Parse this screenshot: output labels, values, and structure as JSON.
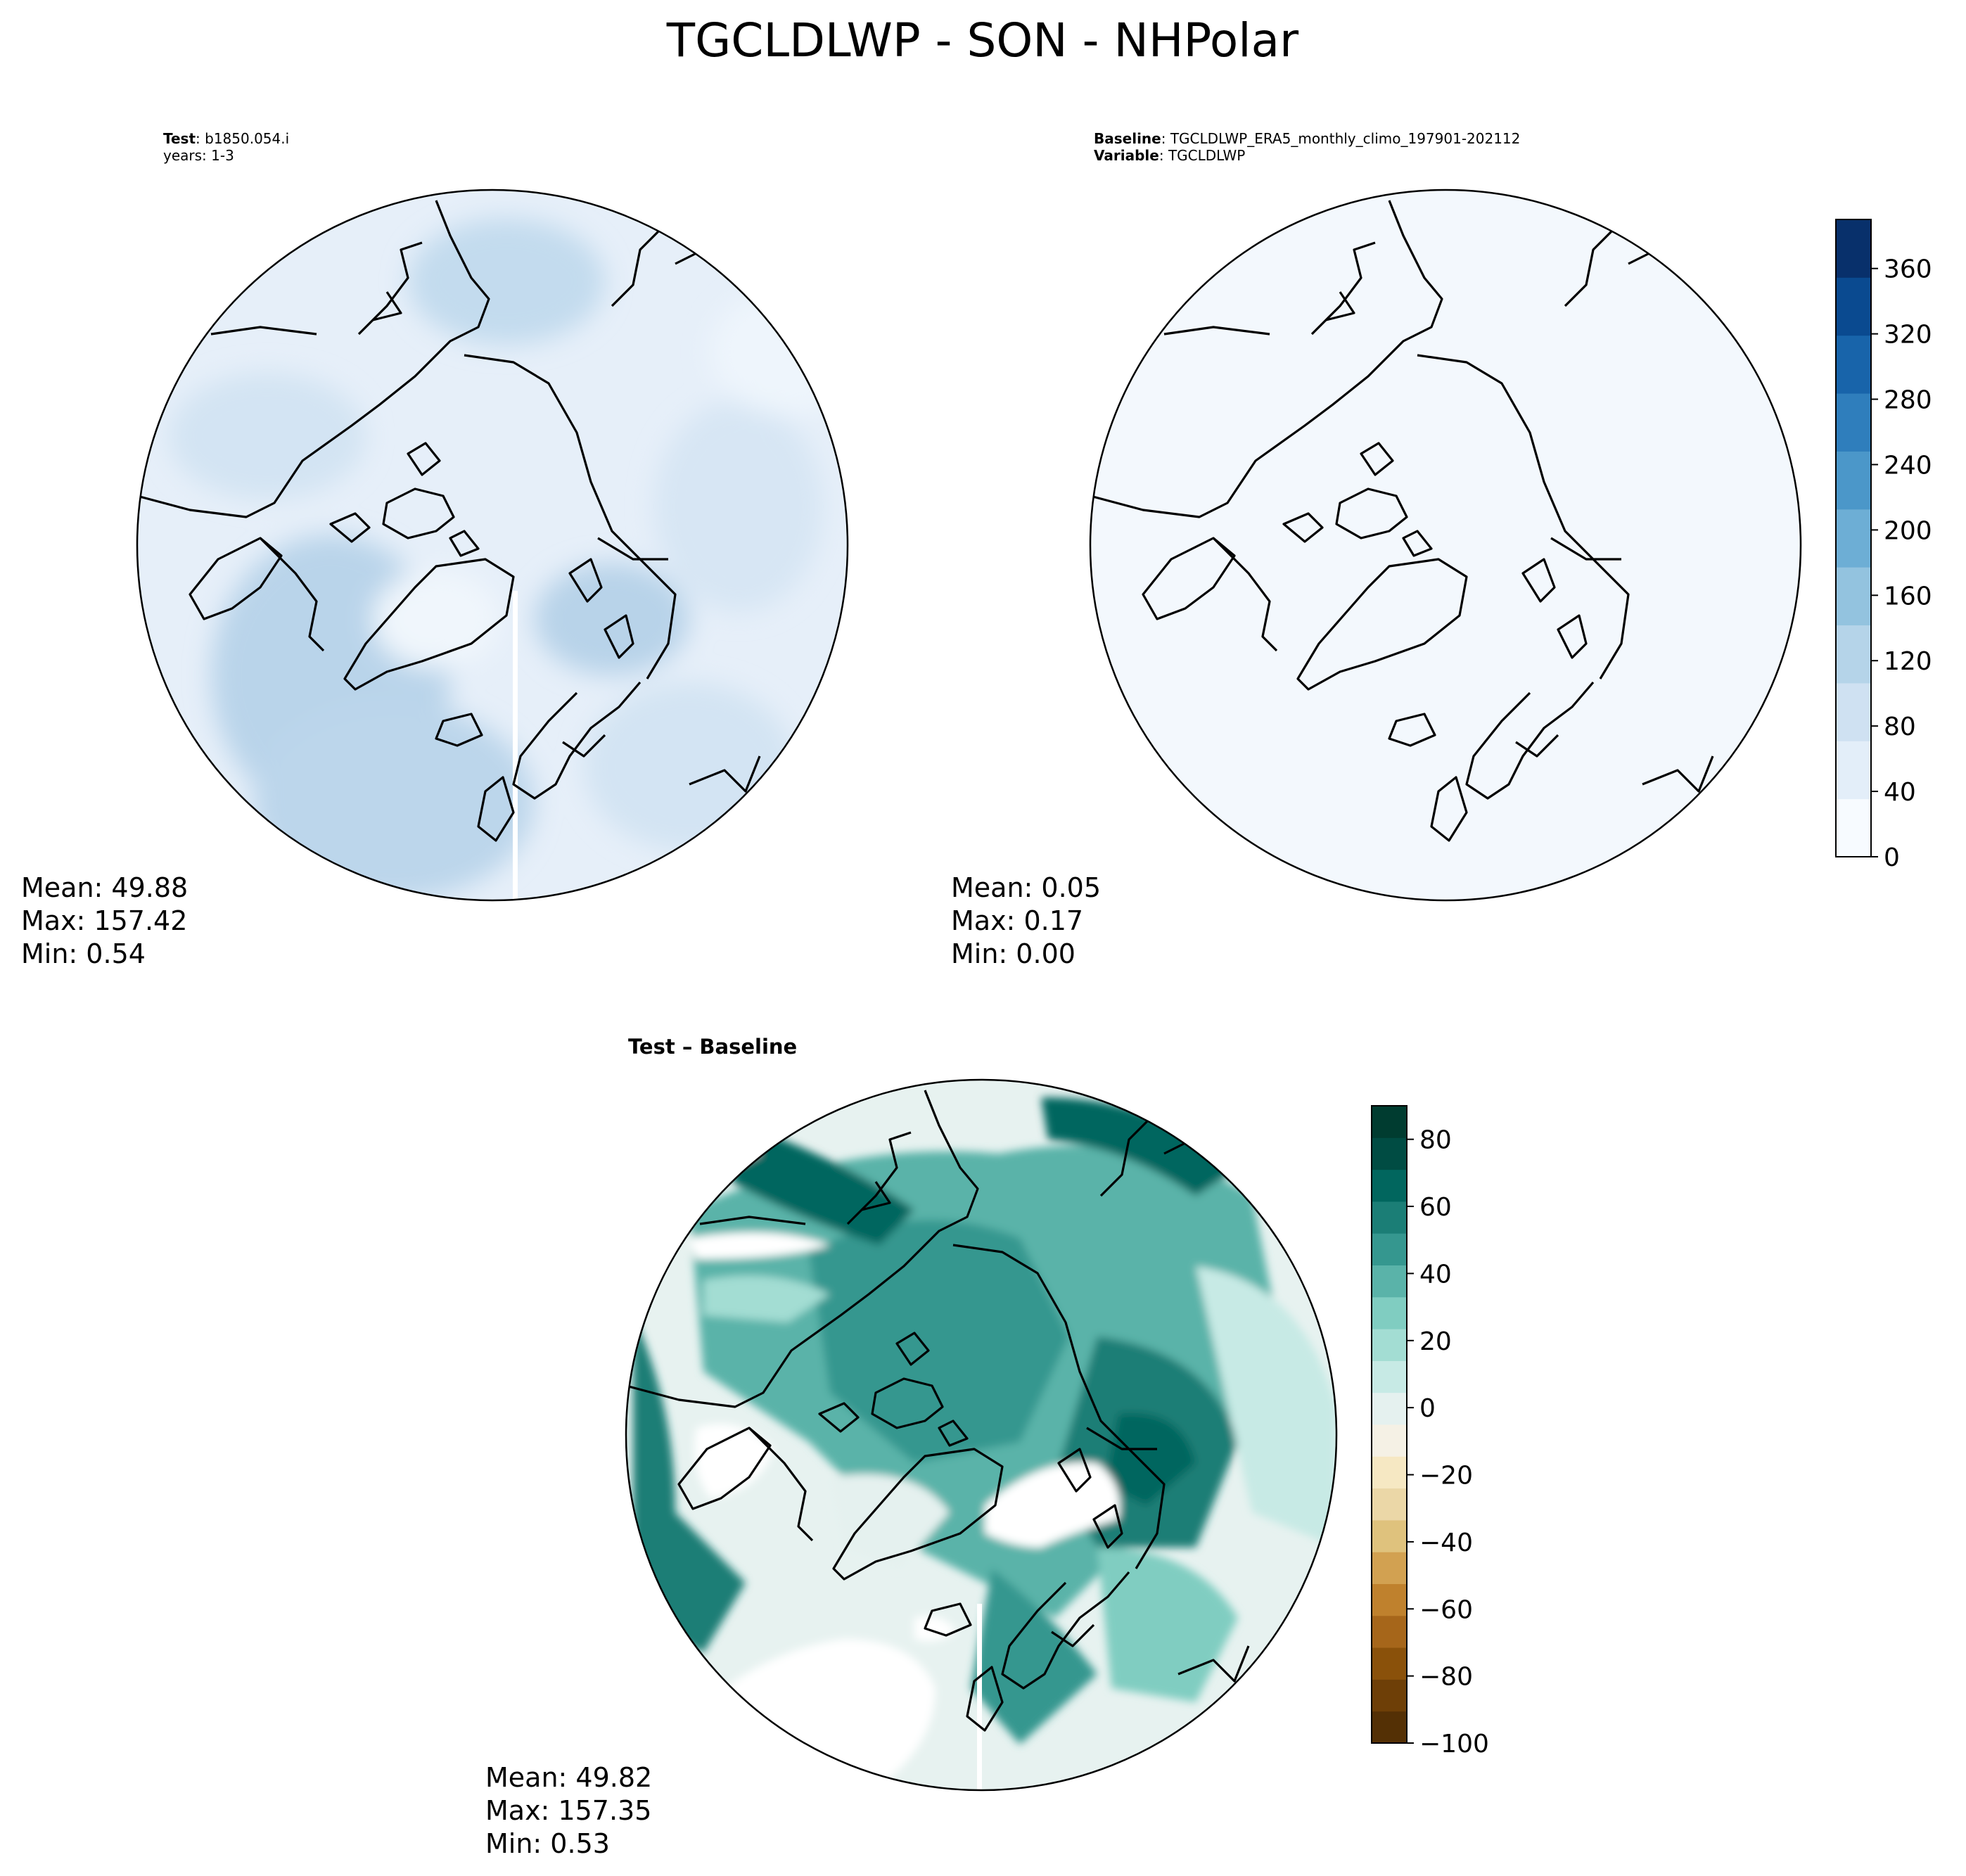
{
  "figure": {
    "title": "TGCLDLWP - SON - NHPolar"
  },
  "panels": {
    "test": {
      "header_label": "Test",
      "header_value": "b1850.054.i",
      "years": "years: 1-3",
      "stats": {
        "mean": "Mean: 49.88",
        "max": "Max: 157.42",
        "min": "Min:  0.54"
      }
    },
    "baseline": {
      "header_label": "Baseline",
      "header_value": "TGCLDLWP_ERA5_monthly_climo_197901-202112",
      "variable_label": "Variable",
      "variable_value": "TGCLDLWP",
      "stats": {
        "mean": "Mean:  0.05",
        "max": "Max:  0.17",
        "min": "Min:  0.00"
      }
    },
    "diff": {
      "title": "Test – Baseline",
      "stats": {
        "mean": "Mean: 49.82",
        "max": "Max: 157.35",
        "min": "Min:  0.53"
      }
    }
  },
  "colorbars": {
    "blues": {
      "colors": [
        "#f7fbff",
        "#e3eef9",
        "#cfe1f2",
        "#b5d4e9",
        "#93c3df",
        "#6daed5",
        "#4b97c9",
        "#2f7ebc",
        "#1864aa",
        "#0a4a90",
        "#08306b"
      ],
      "ticks": [
        "0",
        "40",
        "80",
        "120",
        "160",
        "200",
        "240",
        "280",
        "320",
        "360"
      ]
    },
    "brbg": {
      "colors": [
        "#543005",
        "#6e3f07",
        "#8a510a",
        "#a6661a",
        "#bf812d",
        "#d2a151",
        "#dfc27d",
        "#ebd7a7",
        "#f6e8c3",
        "#f5f1e5",
        "#e5f1ef",
        "#c7eae5",
        "#a3ddd3",
        "#80cdc1",
        "#5ab3a9",
        "#35978f",
        "#1b7e76",
        "#01665e",
        "#004c43",
        "#003c30"
      ],
      "ticks": [
        "80",
        "60",
        "40",
        "20",
        "0",
        "−20",
        "−40",
        "−60",
        "−80",
        "−100"
      ]
    }
  },
  "colors": {
    "test_base": "#dfeaf7",
    "baseline_fill": "#f3f8fd",
    "coastline": "#000000"
  }
}
